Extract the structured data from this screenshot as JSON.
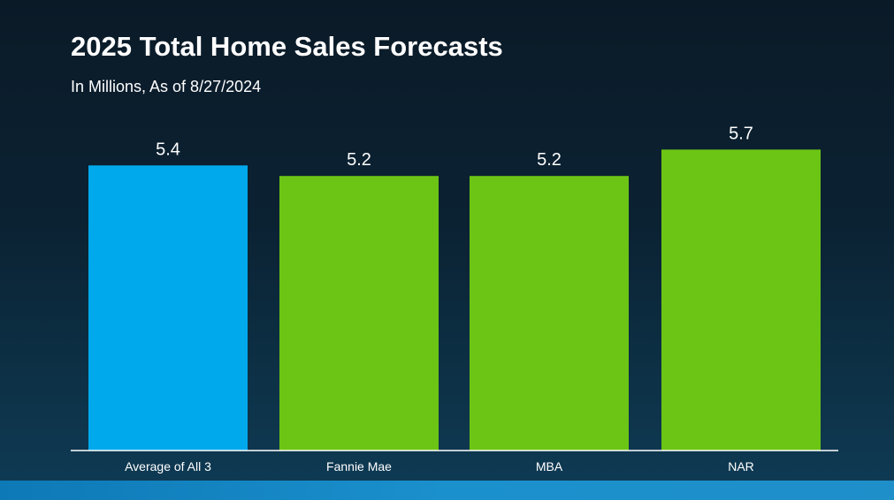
{
  "chart_data": {
    "type": "bar",
    "title": "2025 Total Home Sales Forecasts",
    "subtitle": "In Millions, As of 8/27/2024",
    "categories": [
      "Average of All 3",
      "Fannie Mae",
      "MBA",
      "NAR"
    ],
    "values": [
      5.4,
      5.2,
      5.2,
      5.7
    ],
    "value_labels": [
      "5.4",
      "5.2",
      "5.2",
      "5.7"
    ],
    "bar_colors": [
      "#00a9ec",
      "#6cc514",
      "#6cc514",
      "#6cc514"
    ],
    "ylim": [
      0,
      6.04
    ],
    "grid": false,
    "legend": "none",
    "xlabel": "",
    "ylabel": ""
  },
  "colors": {
    "background": "#0b2233",
    "accent_blue": "#00a9ec",
    "accent_green": "#6cc514",
    "axis_line": "#ffffff",
    "bottom_strip": "#1a90cc"
  }
}
